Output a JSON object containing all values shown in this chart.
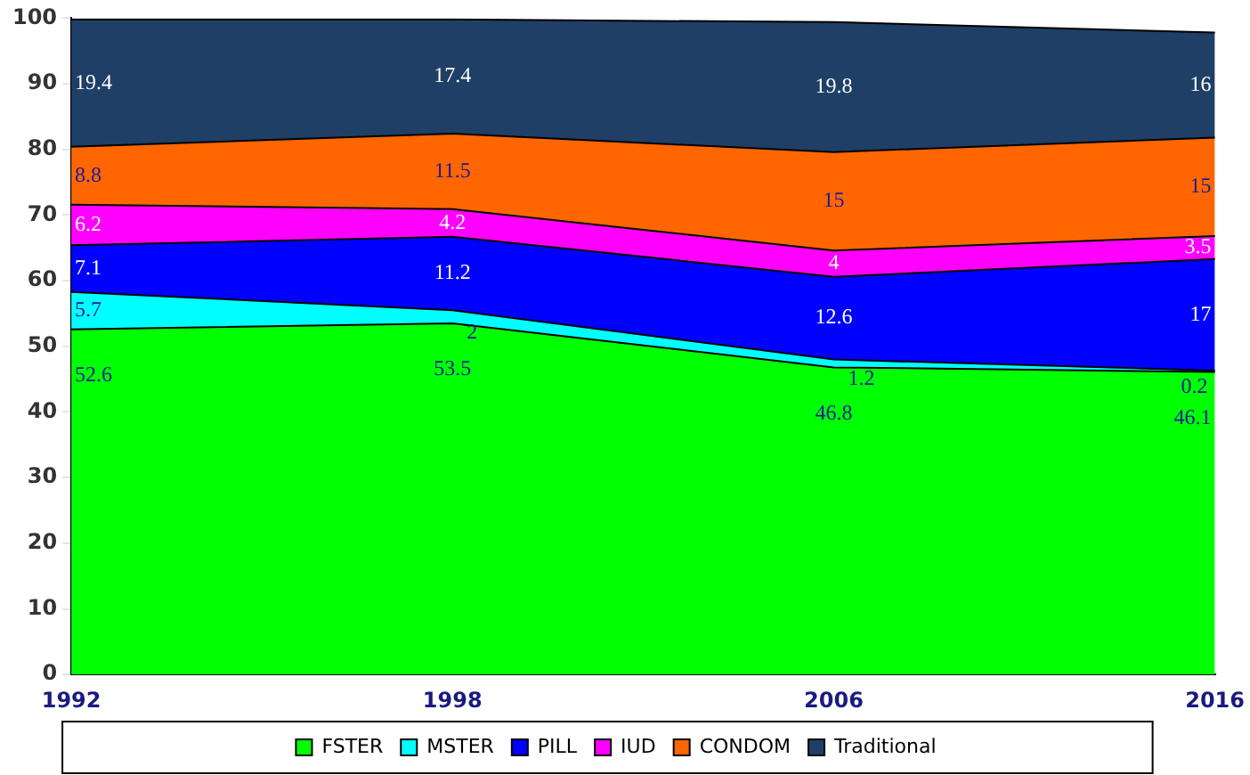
{
  "chart_data": {
    "type": "area",
    "stacked": true,
    "categories": [
      "1992",
      "1998",
      "2006",
      "2016"
    ],
    "series": [
      {
        "name": "FSTER",
        "color": "#00ff00",
        "values": [
          52.6,
          53.5,
          46.8,
          46.1
        ]
      },
      {
        "name": "MSTER",
        "color": "#00ffff",
        "values": [
          5.7,
          2,
          1.2,
          0.2
        ]
      },
      {
        "name": "PILL",
        "color": "#0000ff",
        "values": [
          7.1,
          11.2,
          12.6,
          17
        ]
      },
      {
        "name": "IUD",
        "color": "#ff00ff",
        "values": [
          6.2,
          4.2,
          4,
          3.5
        ]
      },
      {
        "name": "CONDOM",
        "color": "#ff6600",
        "values": [
          8.8,
          11.5,
          15,
          15
        ]
      },
      {
        "name": "Traditional",
        "color": "#1f3f66",
        "values": [
          19.4,
          17.4,
          19.8,
          16
        ]
      }
    ],
    "ylim": [
      0,
      100
    ],
    "yticks": [
      0,
      10,
      20,
      30,
      40,
      50,
      60,
      70,
      80,
      90,
      100
    ],
    "grid": false,
    "legend": "bottom",
    "data_labels": true
  }
}
